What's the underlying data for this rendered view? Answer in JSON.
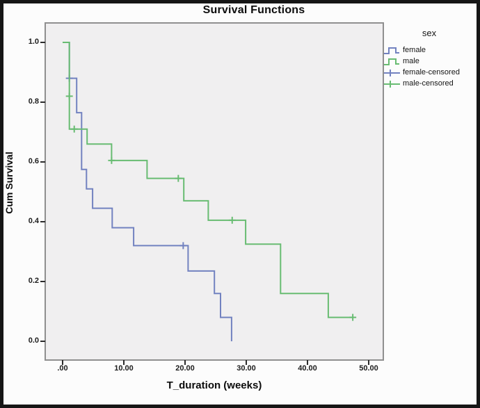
{
  "figure": {
    "title": "Survival Functions",
    "x_axis": {
      "label": "T_duration (weeks)"
    },
    "y_axis": {
      "label": "Cum Survival"
    },
    "legend": {
      "title": "sex",
      "items": [
        {
          "label": "female",
          "glyph": "step-line",
          "icon_name": "female-line-icon",
          "color": "#7282c0"
        },
        {
          "label": "male",
          "glyph": "step-line",
          "icon_name": "male-line-icon",
          "color": "#68bc72"
        },
        {
          "label": "female-censored",
          "glyph": "plus",
          "icon_name": "female-censored-plus-icon",
          "color": "#7282c0"
        },
        {
          "label": "male-censored",
          "glyph": "plus",
          "icon_name": "male-censored-plus-icon",
          "color": "#68bc72"
        }
      ]
    },
    "colors": {
      "plot_background": "#f0eff0",
      "plot_border": "#8f8f8f",
      "outer_border": "#161616",
      "tick": "#2b2b2b",
      "female": "#7282c0",
      "male": "#68bc72"
    }
  },
  "chart_data": {
    "type": "line",
    "subtype": "kaplan-meier-step",
    "title": "Survival Functions",
    "xlabel": "T_duration (weeks)",
    "ylabel": "Cum Survival",
    "xlim": [
      0,
      52.5
    ],
    "ylim": [
      0,
      1.0
    ],
    "grid": false,
    "legend_position": "right",
    "x_ticks": {
      "values": [
        0,
        10,
        20,
        30,
        40,
        50
      ],
      "labels": [
        ".00",
        "10.00",
        "20.00",
        "30.00",
        "40.00",
        "50.00"
      ]
    },
    "y_ticks": {
      "values": [
        1.0,
        0.8,
        0.6,
        0.4,
        0.2,
        0.0
      ],
      "labels": [
        "1.0",
        "0.8",
        "0.6",
        "0.4",
        "0.2",
        "0.0"
      ]
    },
    "series": [
      {
        "name": "female",
        "color": "#7282c0",
        "step_points": [
          [
            0,
            1.0
          ],
          [
            1.1,
            1.0
          ],
          [
            1.1,
            0.88
          ],
          [
            2.3,
            0.88
          ],
          [
            2.3,
            0.765
          ],
          [
            3.1,
            0.765
          ],
          [
            3.1,
            0.575
          ],
          [
            3.9,
            0.575
          ],
          [
            3.9,
            0.51
          ],
          [
            4.9,
            0.51
          ],
          [
            4.9,
            0.445
          ],
          [
            8.1,
            0.445
          ],
          [
            8.1,
            0.38
          ],
          [
            11.6,
            0.38
          ],
          [
            11.6,
            0.32
          ],
          [
            20.5,
            0.32
          ],
          [
            20.5,
            0.235
          ],
          [
            24.8,
            0.235
          ],
          [
            24.8,
            0.16
          ],
          [
            25.8,
            0.16
          ],
          [
            25.8,
            0.08
          ],
          [
            27.6,
            0.08
          ],
          [
            27.6,
            0.0
          ]
        ],
        "censored_points": [
          [
            1.1,
            0.88
          ],
          [
            19.7,
            0.32
          ]
        ]
      },
      {
        "name": "male",
        "color": "#68bc72",
        "step_points": [
          [
            0,
            1.0
          ],
          [
            1.1,
            1.0
          ],
          [
            1.1,
            0.71
          ],
          [
            4.0,
            0.71
          ],
          [
            4.0,
            0.66
          ],
          [
            8.0,
            0.66
          ],
          [
            8.0,
            0.605
          ],
          [
            13.8,
            0.605
          ],
          [
            13.8,
            0.545
          ],
          [
            19.8,
            0.545
          ],
          [
            19.8,
            0.47
          ],
          [
            23.8,
            0.47
          ],
          [
            23.8,
            0.405
          ],
          [
            29.9,
            0.405
          ],
          [
            29.9,
            0.325
          ],
          [
            35.6,
            0.325
          ],
          [
            35.6,
            0.16
          ],
          [
            43.4,
            0.16
          ],
          [
            43.4,
            0.08
          ],
          [
            47.4,
            0.08
          ]
        ],
        "censored_points": [
          [
            1.1,
            0.82
          ],
          [
            1.9,
            0.71
          ],
          [
            8.0,
            0.605
          ],
          [
            18.9,
            0.545
          ],
          [
            27.7,
            0.405
          ],
          [
            47.4,
            0.08
          ]
        ]
      }
    ]
  }
}
